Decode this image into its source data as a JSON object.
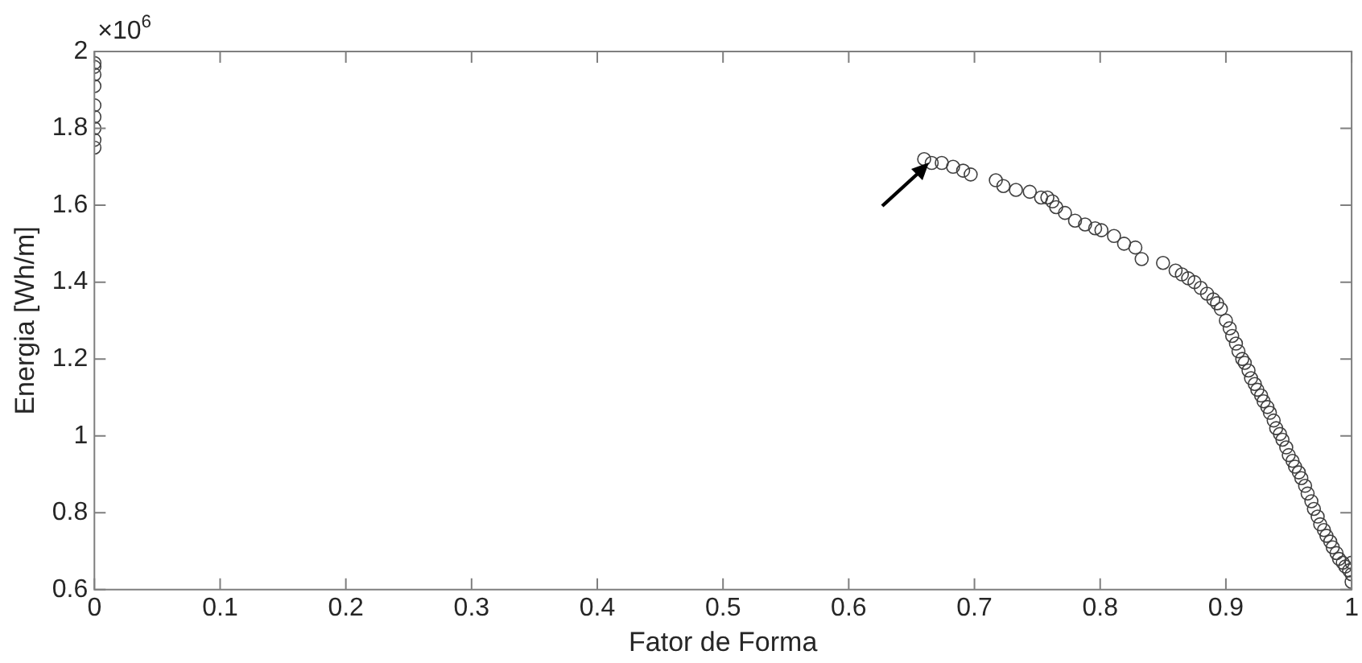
{
  "chart_data": {
    "type": "scatter",
    "xlabel": "Fator de Forma",
    "ylabel": "Energia [Wh/m]",
    "marker": "circle",
    "grid": false,
    "legend": false,
    "annotations": [
      "×10$^{6}$"
    ],
    "xlim": [
      0,
      1
    ],
    "xticks": [
      0,
      0.1,
      0.2,
      0.3,
      0.4,
      0.5,
      0.6,
      0.7,
      0.8,
      0.9,
      1
    ],
    "ylim": [
      0.6,
      2
    ],
    "yticks": [
      0.6,
      0.8,
      1,
      1.2,
      1.4,
      1.6,
      1.8,
      2
    ],
    "series": [
      {
        "color": "#404040",
        "x": [
          0,
          0,
          0,
          0,
          0,
          0,
          0,
          0,
          0,
          0.66,
          0.666,
          0.674,
          0.683,
          0.691,
          0.697,
          0.717,
          0.723,
          0.733,
          0.744,
          0.753,
          0.758,
          0.762,
          0.765,
          0.772,
          0.78,
          0.788,
          0.796,
          0.801,
          0.811,
          0.819,
          0.828,
          0.833,
          0.85,
          0.86,
          0.865,
          0.87,
          0.875,
          0.88,
          0.885,
          0.89,
          0.893,
          0.896,
          0.9,
          0.903,
          0.905,
          0.908,
          0.91,
          0.913,
          0.915,
          0.918,
          0.92,
          0.923,
          0.925,
          0.928,
          0.93,
          0.933,
          0.935,
          0.938,
          0.94,
          0.943,
          0.945,
          0.948,
          0.95,
          0.953,
          0.955,
          0.958,
          0.96,
          0.963,
          0.965,
          0.968,
          0.97,
          0.973,
          0.975,
          0.978,
          0.98,
          0.983,
          0.985,
          0.988,
          0.99,
          0.993,
          0.995,
          0.998,
          1,
          1,
          1
        ],
        "values": [
          1.75,
          1.77,
          1.8,
          1.83,
          1.86,
          1.91,
          1.94,
          1.96,
          1.97,
          1.72,
          1.71,
          1.71,
          1.7,
          1.69,
          1.68,
          1.665,
          1.65,
          1.64,
          1.635,
          1.62,
          1.62,
          1.61,
          1.595,
          1.58,
          1.56,
          1.55,
          1.54,
          1.535,
          1.52,
          1.5,
          1.49,
          1.46,
          1.45,
          1.43,
          1.42,
          1.41,
          1.4,
          1.385,
          1.37,
          1.355,
          1.345,
          1.33,
          1.3,
          1.28,
          1.26,
          1.24,
          1.22,
          1.2,
          1.19,
          1.17,
          1.15,
          1.135,
          1.12,
          1.105,
          1.09,
          1.075,
          1.06,
          1.04,
          1.02,
          1.005,
          0.99,
          0.97,
          0.95,
          0.935,
          0.92,
          0.905,
          0.89,
          0.87,
          0.85,
          0.83,
          0.81,
          0.79,
          0.77,
          0.755,
          0.74,
          0.725,
          0.71,
          0.695,
          0.68,
          0.67,
          0.66,
          0.65,
          0.67,
          0.64,
          0.62
        ]
      }
    ]
  }
}
